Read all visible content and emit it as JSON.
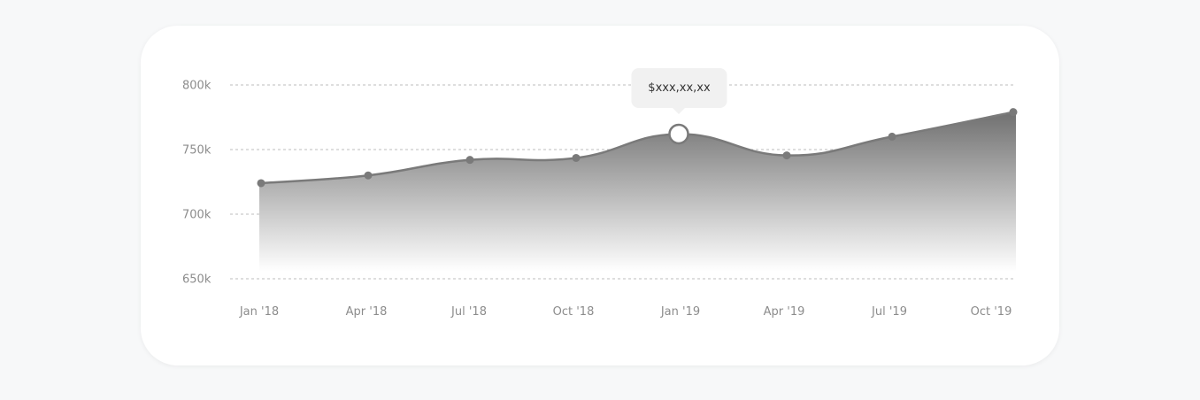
{
  "chart_data": {
    "type": "area",
    "x": [
      "Jan '18",
      "Apr '18",
      "Jul '18",
      "Oct '18",
      "Jan '19",
      "Apr '19",
      "Jul '19",
      "Oct '19"
    ],
    "y_ticks": [
      "800k",
      "750k",
      "700k",
      "650k"
    ],
    "ylim": [
      650000,
      800000
    ],
    "series": [
      {
        "values": [
          724000,
          730000,
          742000,
          743500,
          762000,
          745500,
          760000,
          779000
        ]
      }
    ],
    "highlight_index": 4,
    "tooltip": "$xxx,xx,xx",
    "grid": true,
    "gridline_style": "dashed",
    "colors": {
      "area_top": "#6f6f6f",
      "area_bottom": "#ffffff",
      "line": "#7a7a7a",
      "point": "#7a7a7a",
      "grid": "#bdbdbd"
    }
  }
}
